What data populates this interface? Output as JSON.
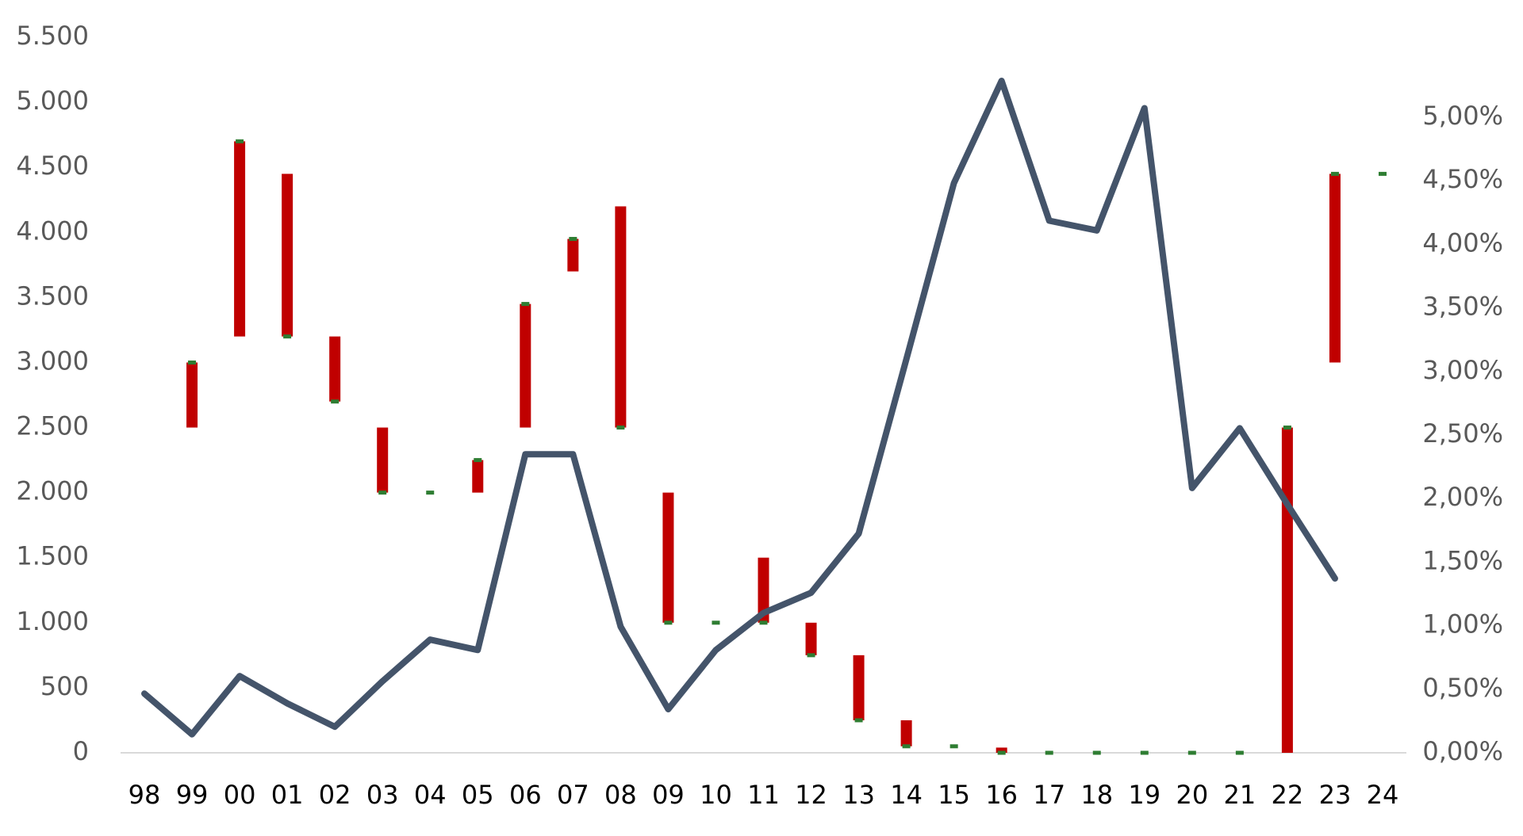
{
  "chart_data": {
    "type": "line",
    "categories": [
      "98",
      "99",
      "00",
      "01",
      "02",
      "03",
      "04",
      "05",
      "06",
      "07",
      "08",
      "09",
      "10",
      "11",
      "12",
      "13",
      "14",
      "15",
      "16",
      "17",
      "18",
      "19",
      "20",
      "21",
      "22",
      "23",
      "24"
    ],
    "series": [
      {
        "color": "#44546a",
        "values": [
          455,
          142,
          590,
          380,
          200,
          550,
          870,
          790,
          2295,
          2295,
          970,
          335,
          790,
          1075,
          1230,
          1685,
          3025,
          4380,
          5165,
          4090,
          4015,
          4955,
          2035,
          2495,
          1910,
          1340,
          null
        ]
      }
    ],
    "ranges": {
      "color": "#c00000",
      "end_color": "#2e7d32",
      "start": [
        null,
        2500,
        3200,
        4450,
        3200,
        2500,
        2000,
        2000,
        2500,
        3700,
        4200,
        2000,
        1000,
        1500,
        1000,
        750,
        250,
        50,
        40,
        0,
        0,
        0,
        0,
        0,
        0,
        3000,
        4450
      ],
      "end": [
        null,
        3000,
        4700,
        3200,
        2700,
        2000,
        2000,
        2250,
        3450,
        3950,
        2500,
        1000,
        1000,
        1000,
        750,
        250,
        50,
        50,
        0,
        0,
        0,
        0,
        0,
        0,
        2500,
        4450,
        4450
      ]
    },
    "ylim": [
      0,
      5500
    ],
    "yticks": [
      0,
      500,
      {
        "value": 1000,
        "label": "1.000"
      },
      {
        "value": 1500,
        "label": "1.500"
      },
      {
        "value": 2000,
        "label": "2.000"
      },
      {
        "value": 2500,
        "label": "2.500"
      },
      {
        "value": 3000,
        "label": "3.000"
      },
      {
        "value": 3500,
        "label": "3.500"
      },
      {
        "value": 4000,
        "label": "4.000"
      },
      {
        "value": 4500,
        "label": "4.500"
      },
      {
        "value": 5000,
        "label": "5.000"
      },
      {
        "value": 5500,
        "label": "5.500"
      }
    ],
    "y2lim": [
      0,
      5.63
    ],
    "y2ticks": [
      {
        "value": 0,
        "label": "0,00%"
      },
      {
        "value": 0.5,
        "label": "0,50%"
      },
      {
        "value": 1,
        "label": "1,00%"
      },
      {
        "value": 1.5,
        "label": "1,50%"
      },
      {
        "value": 2,
        "label": "2,00%"
      },
      {
        "value": 2.5,
        "label": "2,50%"
      },
      {
        "value": 3,
        "label": "3,00%"
      },
      {
        "value": 3.5,
        "label": "3,50%"
      },
      {
        "value": 4,
        "label": "4,00%"
      },
      {
        "value": 4.5,
        "label": "4,50%"
      },
      {
        "value": 5,
        "label": "5,00%"
      }
    ]
  }
}
